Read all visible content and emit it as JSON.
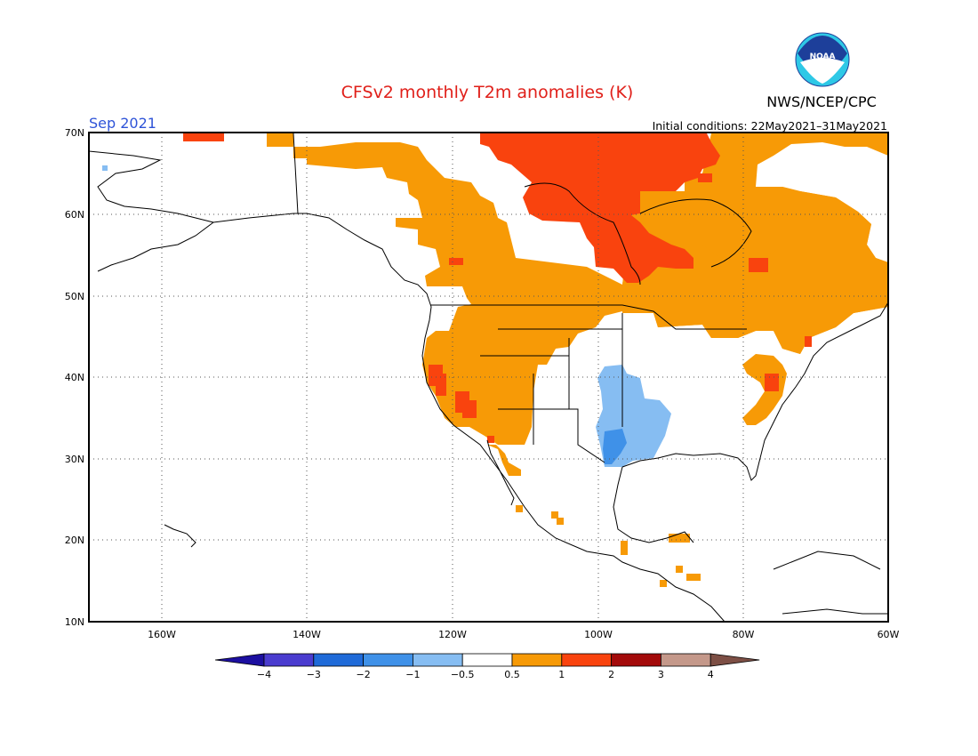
{
  "title": "CFSv2 monthly T2m anomalies (K)",
  "period": "Sep 2021",
  "agency": "NWS/NCEP/CPC",
  "logo_text": "NOAA",
  "initial_conditions": "Initial conditions: 22May2021–31May2021",
  "lat_ticks": [
    "70N",
    "60N",
    "50N",
    "40N",
    "30N",
    "20N",
    "10N"
  ],
  "lon_ticks": [
    "160W",
    "140W",
    "120W",
    "100W",
    "80W",
    "60W"
  ],
  "colorbar": {
    "labels": [
      "−4",
      "−3",
      "−2",
      "−1",
      "−0.5",
      "0.5",
      "1",
      "2",
      "3",
      "4"
    ],
    "colors": [
      "#1c0fa0",
      "#4a3ccf",
      "#1f6ad8",
      "#3f91e8",
      "#86bdf2",
      "#ffffff",
      "#f79a06",
      "#f9430e",
      "#a30a0a",
      "#c4988a",
      "#7d4f45"
    ]
  },
  "map": {
    "lat_range": [
      10,
      70
    ],
    "lon_range": [
      -170,
      -60
    ],
    "colors": {
      "warm1": "#f79a06",
      "warm2": "#f9430e",
      "cool1": "#86bdf2",
      "cool2": "#3f91e8"
    }
  }
}
